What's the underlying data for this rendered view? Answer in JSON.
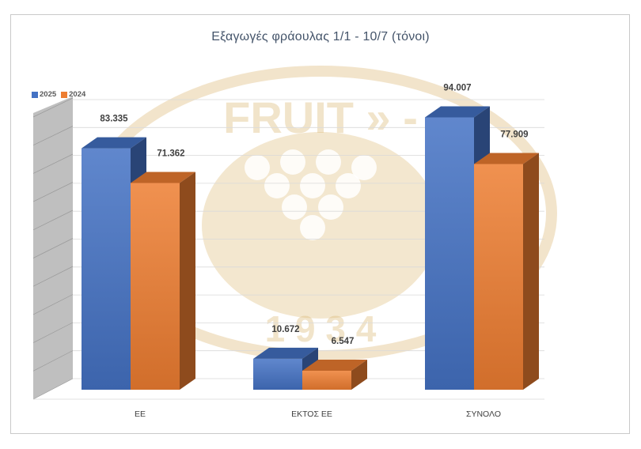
{
  "colors": {
    "series_2025": "#4472c4",
    "series_2024": "#ed7d31",
    "watermark": "#d9b36a",
    "grid": "#d9d9d9",
    "wall": "#b8b8b8"
  },
  "watermark": {
    "text_top": "FRUIT » -",
    "text_bottom": "1 9 3 4"
  },
  "chart_data": {
    "type": "bar",
    "title": "Εξαγωγές φράουλας 1/1 -  10/7 (τόνοι)",
    "categories": [
      "ΕΕ",
      "ΕΚΤΟΣ ΕΕ",
      "ΣΥΝΟΛΟ"
    ],
    "series": [
      {
        "name": "2025",
        "values": [
          83335,
          10672,
          94007
        ],
        "labels": [
          "83.335",
          "10.672",
          "94.007"
        ]
      },
      {
        "name": "2024",
        "values": [
          71362,
          6547,
          77909
        ],
        "labels": [
          "71.362",
          "6.547",
          "77.909"
        ]
      }
    ],
    "ylim": [
      0,
      100000
    ],
    "grid": true,
    "legend_position": "top-left",
    "style": "3d-clustered-column"
  }
}
